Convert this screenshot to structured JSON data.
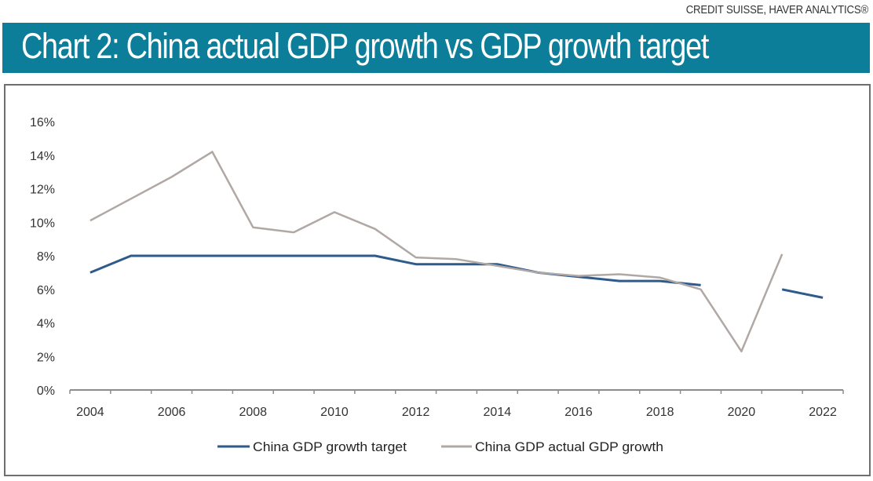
{
  "source": "CREDIT SUISSE, HAVER ANALYTICS®",
  "title": "Chart 2: China actual GDP growth vs GDP growth target",
  "colors": {
    "header_bg": "#0d7e9a",
    "target": "#2e5a8c",
    "actual": "#b0a8a4",
    "axis": "#8c8c8c"
  },
  "chart_data": {
    "type": "line",
    "title": "Chart 2: China actual GDP growth vs GDP growth target",
    "xlabel": "",
    "ylabel": "",
    "x": [
      2004,
      2005,
      2006,
      2007,
      2008,
      2009,
      2010,
      2011,
      2012,
      2013,
      2014,
      2015,
      2016,
      2017,
      2018,
      2019,
      2020,
      2021,
      2022
    ],
    "x_tick_labels": [
      "2004",
      "2006",
      "2008",
      "2010",
      "2012",
      "2014",
      "2016",
      "2018",
      "2020",
      "2022"
    ],
    "y_tick_labels": [
      "0%",
      "2%",
      "4%",
      "6%",
      "8%",
      "10%",
      "12%",
      "14%",
      "16%"
    ],
    "ylim": [
      0,
      16
    ],
    "y_ticks": [
      0,
      2,
      4,
      6,
      8,
      10,
      12,
      14,
      16
    ],
    "grid": false,
    "legend_position": "bottom",
    "series": [
      {
        "name": "China GDP growth target",
        "color": "#2e5a8c",
        "values": [
          7.0,
          8.0,
          8.0,
          8.0,
          8.0,
          8.0,
          8.0,
          8.0,
          7.5,
          7.5,
          7.5,
          7.0,
          6.75,
          6.5,
          6.5,
          6.25,
          null,
          6.0,
          5.5
        ]
      },
      {
        "name": "China GDP actual GDP growth",
        "color": "#b0a8a4",
        "values": [
          10.1,
          11.4,
          12.7,
          14.2,
          9.7,
          9.4,
          10.6,
          9.6,
          7.9,
          7.8,
          7.4,
          7.0,
          6.8,
          6.9,
          6.7,
          6.0,
          2.3,
          8.1,
          null
        ]
      }
    ]
  }
}
